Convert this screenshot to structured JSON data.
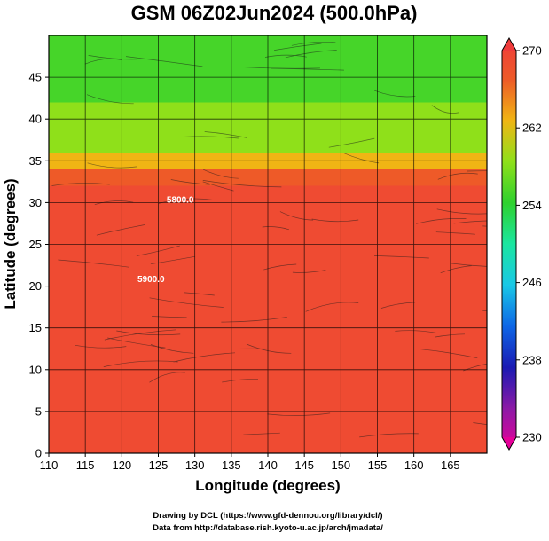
{
  "chart_data": {
    "type": "heatmap",
    "title": "GSM 06Z02Jun2024 (500.0hPa)",
    "xlabel": "Longitude (degrees)",
    "ylabel": "Latitude (degrees)",
    "xlim": [
      110,
      170
    ],
    "ylim": [
      0,
      50
    ],
    "x_ticks": [
      110,
      115,
      120,
      125,
      130,
      135,
      140,
      145,
      150,
      155,
      160,
      165
    ],
    "y_ticks": [
      0,
      5,
      10,
      15,
      20,
      25,
      30,
      35,
      40,
      45
    ],
    "grid": true,
    "colorbar": {
      "min": 230,
      "max": 270,
      "tick_values": [
        230,
        238,
        246,
        254,
        262,
        270
      ],
      "tick_labels": [
        "230",
        "238",
        "246",
        "254",
        "262",
        "270"
      ],
      "stops": [
        {
          "value": 230,
          "color": "#e60099"
        },
        {
          "value": 234,
          "color": "#8c1aa6"
        },
        {
          "value": 238,
          "color": "#1a1ab3"
        },
        {
          "value": 242,
          "color": "#0d66e6"
        },
        {
          "value": 246,
          "color": "#19c8e6"
        },
        {
          "value": 250,
          "color": "#1ae6a0"
        },
        {
          "value": 254,
          "color": "#2ed12e"
        },
        {
          "value": 258,
          "color": "#8fe01a"
        },
        {
          "value": 262,
          "color": "#f0b514"
        },
        {
          "value": 266,
          "color": "#ee5a28"
        },
        {
          "value": 270,
          "color": "#ef3b3b"
        }
      ]
    },
    "temperature_regions": [
      {
        "lat_from": 0,
        "lat_to": 32,
        "value": 268
      },
      {
        "lat_from": 32,
        "lat_to": 34,
        "value": 266
      },
      {
        "lat_from": 34,
        "lat_to": 36,
        "value": 262
      },
      {
        "lat_from": 36,
        "lat_to": 42,
        "value": 258
      },
      {
        "lat_from": 42,
        "lat_to": 50,
        "value": 255
      }
    ],
    "contour_labels": [
      {
        "text": "5800.0",
        "lon": 128,
        "lat": 30
      },
      {
        "text": "5900.0",
        "lon": 124,
        "lat": 20.5
      }
    ]
  },
  "credits": {
    "line1": "Drawing by DCL (https://www.gfd-dennou.org/library/dcl/)",
    "line2": "Data from http://database.rish.kyoto-u.ac.jp/arch/jmadata/"
  }
}
